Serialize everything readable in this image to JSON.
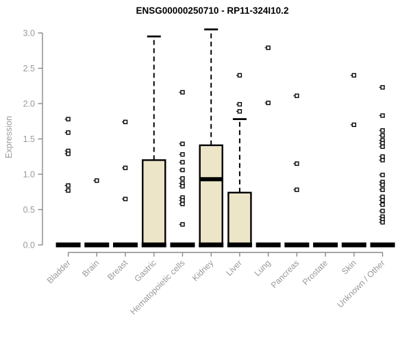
{
  "chart_data": {
    "type": "boxplot",
    "title": "ENSG00000250710 - RP11-324I10.2",
    "ylabel": "Expression",
    "xlabel": "",
    "ylim": [
      0.0,
      3.0
    ],
    "yticks": [
      "0.0",
      "0.5",
      "1.0",
      "1.5",
      "2.0",
      "2.5",
      "3.0"
    ],
    "grid": "off",
    "legend": "none",
    "categories": [
      "Bladder",
      "Brain",
      "Breast",
      "Gastric",
      "Hematopoietic cells",
      "Kidney",
      "Liver",
      "Lung",
      "Pancreas",
      "Prostate",
      "Skin",
      "Unknown / Other"
    ],
    "boxes": [
      {
        "category": "Bladder",
        "q1": 0,
        "median": 0,
        "q3": 0,
        "whisker_low": 0,
        "whisker_high": 0,
        "outliers": [
          1.78,
          1.59,
          1.33,
          1.29,
          0.84,
          0.77
        ]
      },
      {
        "category": "Brain",
        "q1": 0,
        "median": 0,
        "q3": 0,
        "whisker_low": 0,
        "whisker_high": 0,
        "outliers": [
          0.91
        ]
      },
      {
        "category": "Breast",
        "q1": 0,
        "median": 0,
        "q3": 0,
        "whisker_low": 0,
        "whisker_high": 0,
        "outliers": [
          1.74,
          1.09,
          0.65
        ]
      },
      {
        "category": "Gastric",
        "q1": 0,
        "median": 0,
        "q3": 1.2,
        "whisker_low": 0,
        "whisker_high": 2.95,
        "outliers": []
      },
      {
        "category": "Hematopoietic cells",
        "q1": 0,
        "median": 0,
        "q3": 0,
        "whisker_low": 0,
        "whisker_high": 0,
        "outliers": [
          2.16,
          1.43,
          1.28,
          1.17,
          1.06,
          0.94,
          0.87,
          0.83,
          0.67,
          0.63,
          0.58,
          0.29
        ]
      },
      {
        "category": "Kidney",
        "q1": 0,
        "median": 0.93,
        "q3": 1.41,
        "whisker_low": 0,
        "whisker_high": 3.05,
        "outliers": []
      },
      {
        "category": "Liver",
        "q1": 0,
        "median": 0,
        "q3": 0.74,
        "whisker_low": 0,
        "whisker_high": 1.78,
        "outliers": [
          2.4,
          1.99,
          1.89
        ]
      },
      {
        "category": "Lung",
        "q1": 0,
        "median": 0,
        "q3": 0,
        "whisker_low": 0,
        "whisker_high": 0,
        "outliers": [
          2.79,
          2.01
        ]
      },
      {
        "category": "Pancreas",
        "q1": 0,
        "median": 0,
        "q3": 0,
        "whisker_low": 0,
        "whisker_high": 0,
        "outliers": [
          2.11,
          1.15,
          0.78
        ]
      },
      {
        "category": "Prostate",
        "q1": 0,
        "median": 0,
        "q3": 0,
        "whisker_low": 0,
        "whisker_high": 0,
        "outliers": []
      },
      {
        "category": "Skin",
        "q1": 0,
        "median": 0,
        "q3": 0,
        "whisker_low": 0,
        "whisker_high": 0,
        "outliers": [
          2.4,
          1.7
        ]
      },
      {
        "category": "Unknown / Other",
        "q1": 0,
        "median": 0,
        "q3": 0,
        "whisker_low": 0,
        "whisker_high": 0,
        "outliers": [
          2.23,
          1.83,
          1.62,
          1.55,
          1.48,
          1.44,
          1.39,
          1.25,
          1.2,
          0.99,
          0.89,
          0.85,
          0.78,
          0.68,
          0.63,
          0.57,
          0.48,
          0.4,
          0.36,
          0.32
        ]
      }
    ],
    "colors": {
      "box_fill": "#ece5c8",
      "box_stroke": "#000000",
      "median": "#000000",
      "outlier_fill": "#ffffff",
      "axis": "#888888",
      "tick_label": "#999999",
      "title": "#000000",
      "background": "#ffffff"
    }
  }
}
